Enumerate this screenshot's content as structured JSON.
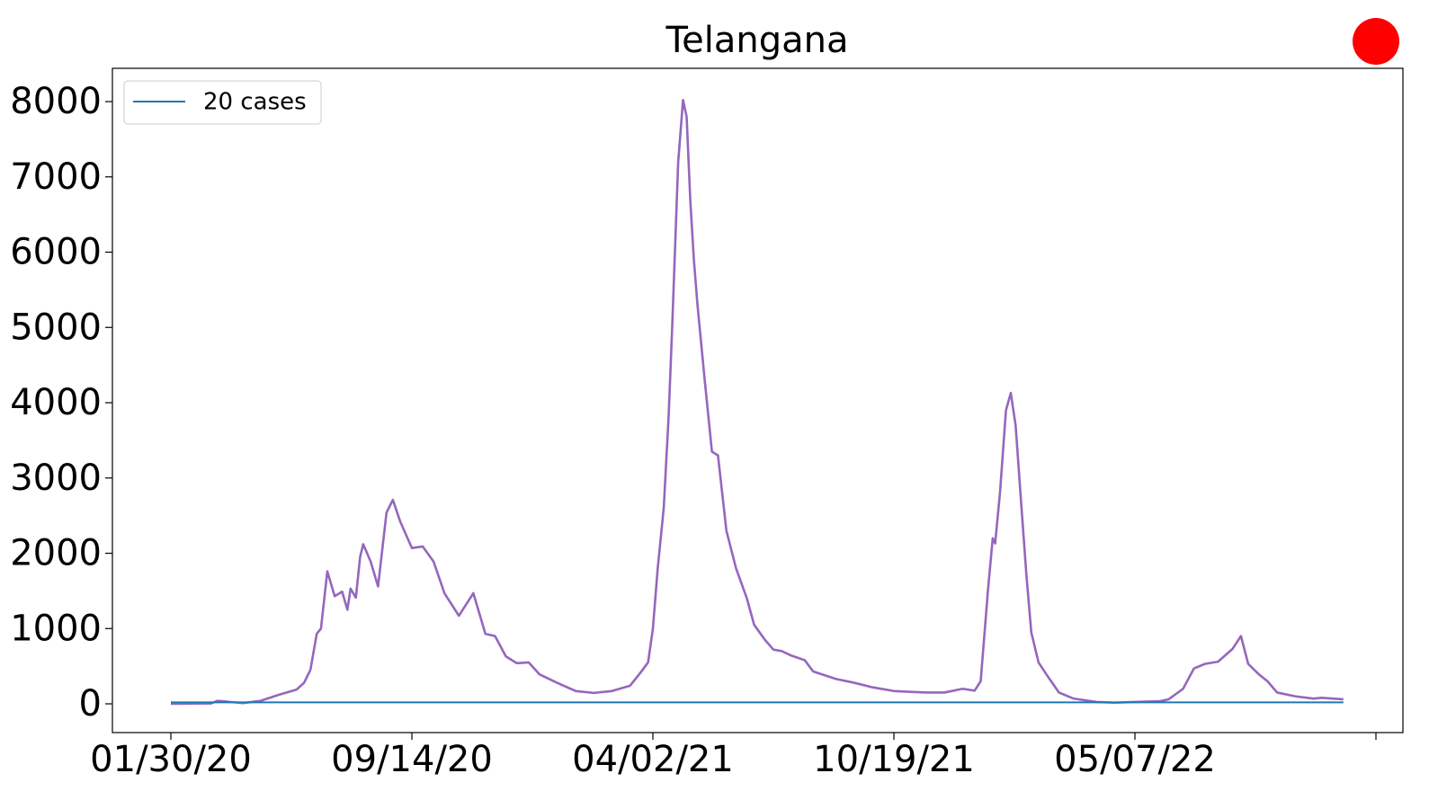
{
  "chart_data": {
    "type": "line",
    "title": "Telangana",
    "xlim": [
      "12/06/19",
      "12/16/22"
    ],
    "xticks": [
      "01/30/20",
      "09/14/20",
      "04/02/21",
      "10/19/21",
      "05/07/22",
      {
        "value": "11/23/22",
        "label": null
      }
    ],
    "ylim": [
      -382,
      8442
    ],
    "yticks": [
      0,
      1000,
      2000,
      3000,
      4000,
      5000,
      6000,
      7000,
      8000
    ],
    "legend": "upper left",
    "series": [
      {
        "color": "#9467bd",
        "x": [
          "01/30/20",
          "03/08/20",
          "03/14/20",
          "04/07/20",
          "04/24/20",
          "05/11/20",
          "05/28/20",
          "06/04/20",
          "06/10/20",
          "06/16/20",
          "06/20/20",
          "06/26/20",
          "07/03/20",
          "07/10/20",
          "07/15/20",
          "07/18/20",
          "07/23/20",
          "07/27/20",
          "07/30/20",
          "08/06/20",
          "08/13/20",
          "08/21/20",
          "08/27/20",
          "09/03/20",
          "09/14/20",
          "09/23/20",
          "10/02/20",
          "10/11/20",
          "10/23/20",
          "11/04/20",
          "11/14/20",
          "11/22/20",
          "12/01/20",
          "12/10/20",
          "12/20/20",
          "12/29/20",
          "01/13/21",
          "01/28/21",
          "02/12/21",
          "02/27/21",
          "03/14/21",
          "03/23/21",
          "03/29/21",
          "04/02/21",
          "04/06/21",
          "04/11/21",
          "04/15/21",
          "04/18/21",
          "04/23/21",
          "04/27/21",
          "04/30/21",
          "05/03/21",
          "05/06/21",
          "05/09/21",
          "05/15/21",
          "05/21/21",
          "05/26/21",
          "06/02/21",
          "06/10/21",
          "06/19/21",
          "06/25/21",
          "07/04/21",
          "07/11/21",
          "07/18/21",
          "07/26/21",
          "08/06/21",
          "08/13/21",
          "09/01/21",
          "09/16/21",
          "10/01/21",
          "10/19/21",
          "10/31/21",
          "11/15/21",
          "11/30/21",
          "12/15/21",
          "12/25/21",
          "12/30/21",
          "01/05/22",
          "01/09/22",
          "01/11/22",
          "01/15/22",
          "01/20/22",
          "01/24/22",
          "01/28/22",
          "02/01/22",
          "02/06/22",
          "02/10/22",
          "02/16/22",
          "02/23/22",
          "03/05/22",
          "03/17/22",
          "04/05/22",
          "04/20/22",
          "05/07/22",
          "05/28/22",
          "06/04/22",
          "06/16/22",
          "06/25/22",
          "07/04/22",
          "07/15/22",
          "07/27/22",
          "08/03/22",
          "08/09/22",
          "08/18/22",
          "08/25/22",
          "09/02/22",
          "09/17/22",
          "10/02/22",
          "10/09/22",
          "10/27/22"
        ],
        "values": [
          0,
          5,
          40,
          10,
          40,
          120,
          190,
          280,
          450,
          930,
          1000,
          1760,
          1430,
          1490,
          1250,
          1530,
          1410,
          1950,
          2120,
          1890,
          1560,
          2540,
          2710,
          2420,
          2070,
          2090,
          1890,
          1470,
          1170,
          1470,
          930,
          900,
          630,
          540,
          550,
          390,
          275,
          170,
          145,
          170,
          240,
          420,
          550,
          1000,
          1800,
          2600,
          3800,
          5000,
          7200,
          8020,
          7800,
          6700,
          5900,
          5300,
          4300,
          3350,
          3300,
          2300,
          1800,
          1400,
          1050,
          850,
          720,
          700,
          640,
          580,
          430,
          330,
          280,
          220,
          170,
          160,
          150,
          150,
          200,
          175,
          300,
          1500,
          2200,
          2130,
          2800,
          3900,
          4130,
          3700,
          2800,
          1700,
          950,
          550,
          380,
          150,
          70,
          25,
          15,
          25,
          35,
          60,
          200,
          470,
          530,
          560,
          730,
          900,
          530,
          390,
          300,
          150,
          100,
          70,
          80,
          60
        ]
      },
      {
        "name": "20 cases",
        "color": "#1f77b4",
        "x": [
          "01/30/20",
          "10/27/22"
        ],
        "values": [
          20,
          20
        ]
      }
    ]
  }
}
